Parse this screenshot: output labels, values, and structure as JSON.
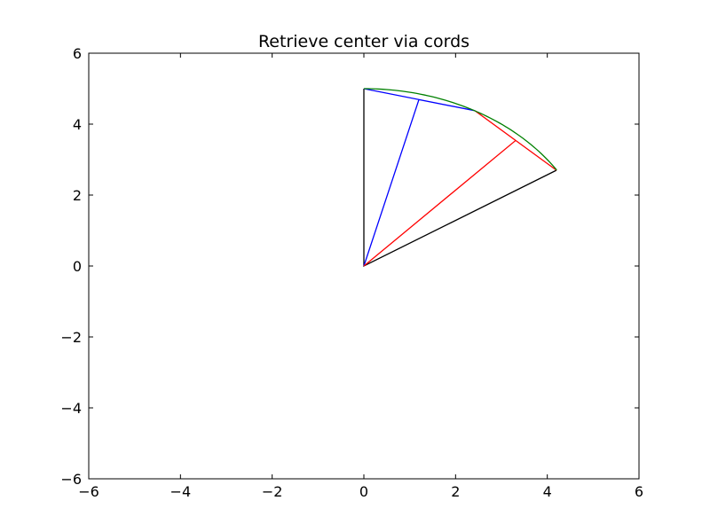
{
  "chart_data": {
    "type": "line",
    "title": "Retrieve center via cords",
    "xlabel": "",
    "ylabel": "",
    "xlim": [
      -6,
      6
    ],
    "ylim": [
      -6,
      6
    ],
    "grid": false,
    "xticks": [
      -6,
      -4,
      -2,
      0,
      2,
      4,
      6
    ],
    "yticks": [
      -6,
      -4,
      -2,
      0,
      2,
      4,
      6
    ],
    "xtick_labels": [
      "−6",
      "−4",
      "−2",
      "0",
      "2",
      "4",
      "6"
    ],
    "ytick_labels": [
      "−6",
      "−4",
      "−2",
      "0",
      "2",
      "4",
      "6"
    ],
    "series": [
      {
        "color": "#000000",
        "shape": "polyline",
        "points": [
          [
            0,
            5
          ],
          [
            0,
            0
          ],
          [
            4.2,
            2.7
          ]
        ]
      },
      {
        "color": "#0000ff",
        "shape": "polyline",
        "points": [
          [
            0,
            5
          ],
          [
            2.42,
            4.38
          ],
          [
            1.2,
            4.69
          ],
          [
            0,
            0
          ]
        ]
      },
      {
        "color": "#ff0000",
        "shape": "polyline",
        "points": [
          [
            2.42,
            4.38
          ],
          [
            4.2,
            2.7
          ],
          [
            3.31,
            3.54
          ],
          [
            0,
            0
          ]
        ]
      },
      {
        "color": "#008000",
        "shape": "arc",
        "center": [
          0,
          0
        ],
        "radius": 5,
        "from_point": [
          0,
          5
        ],
        "to_point": [
          4.2,
          2.7
        ]
      }
    ]
  }
}
